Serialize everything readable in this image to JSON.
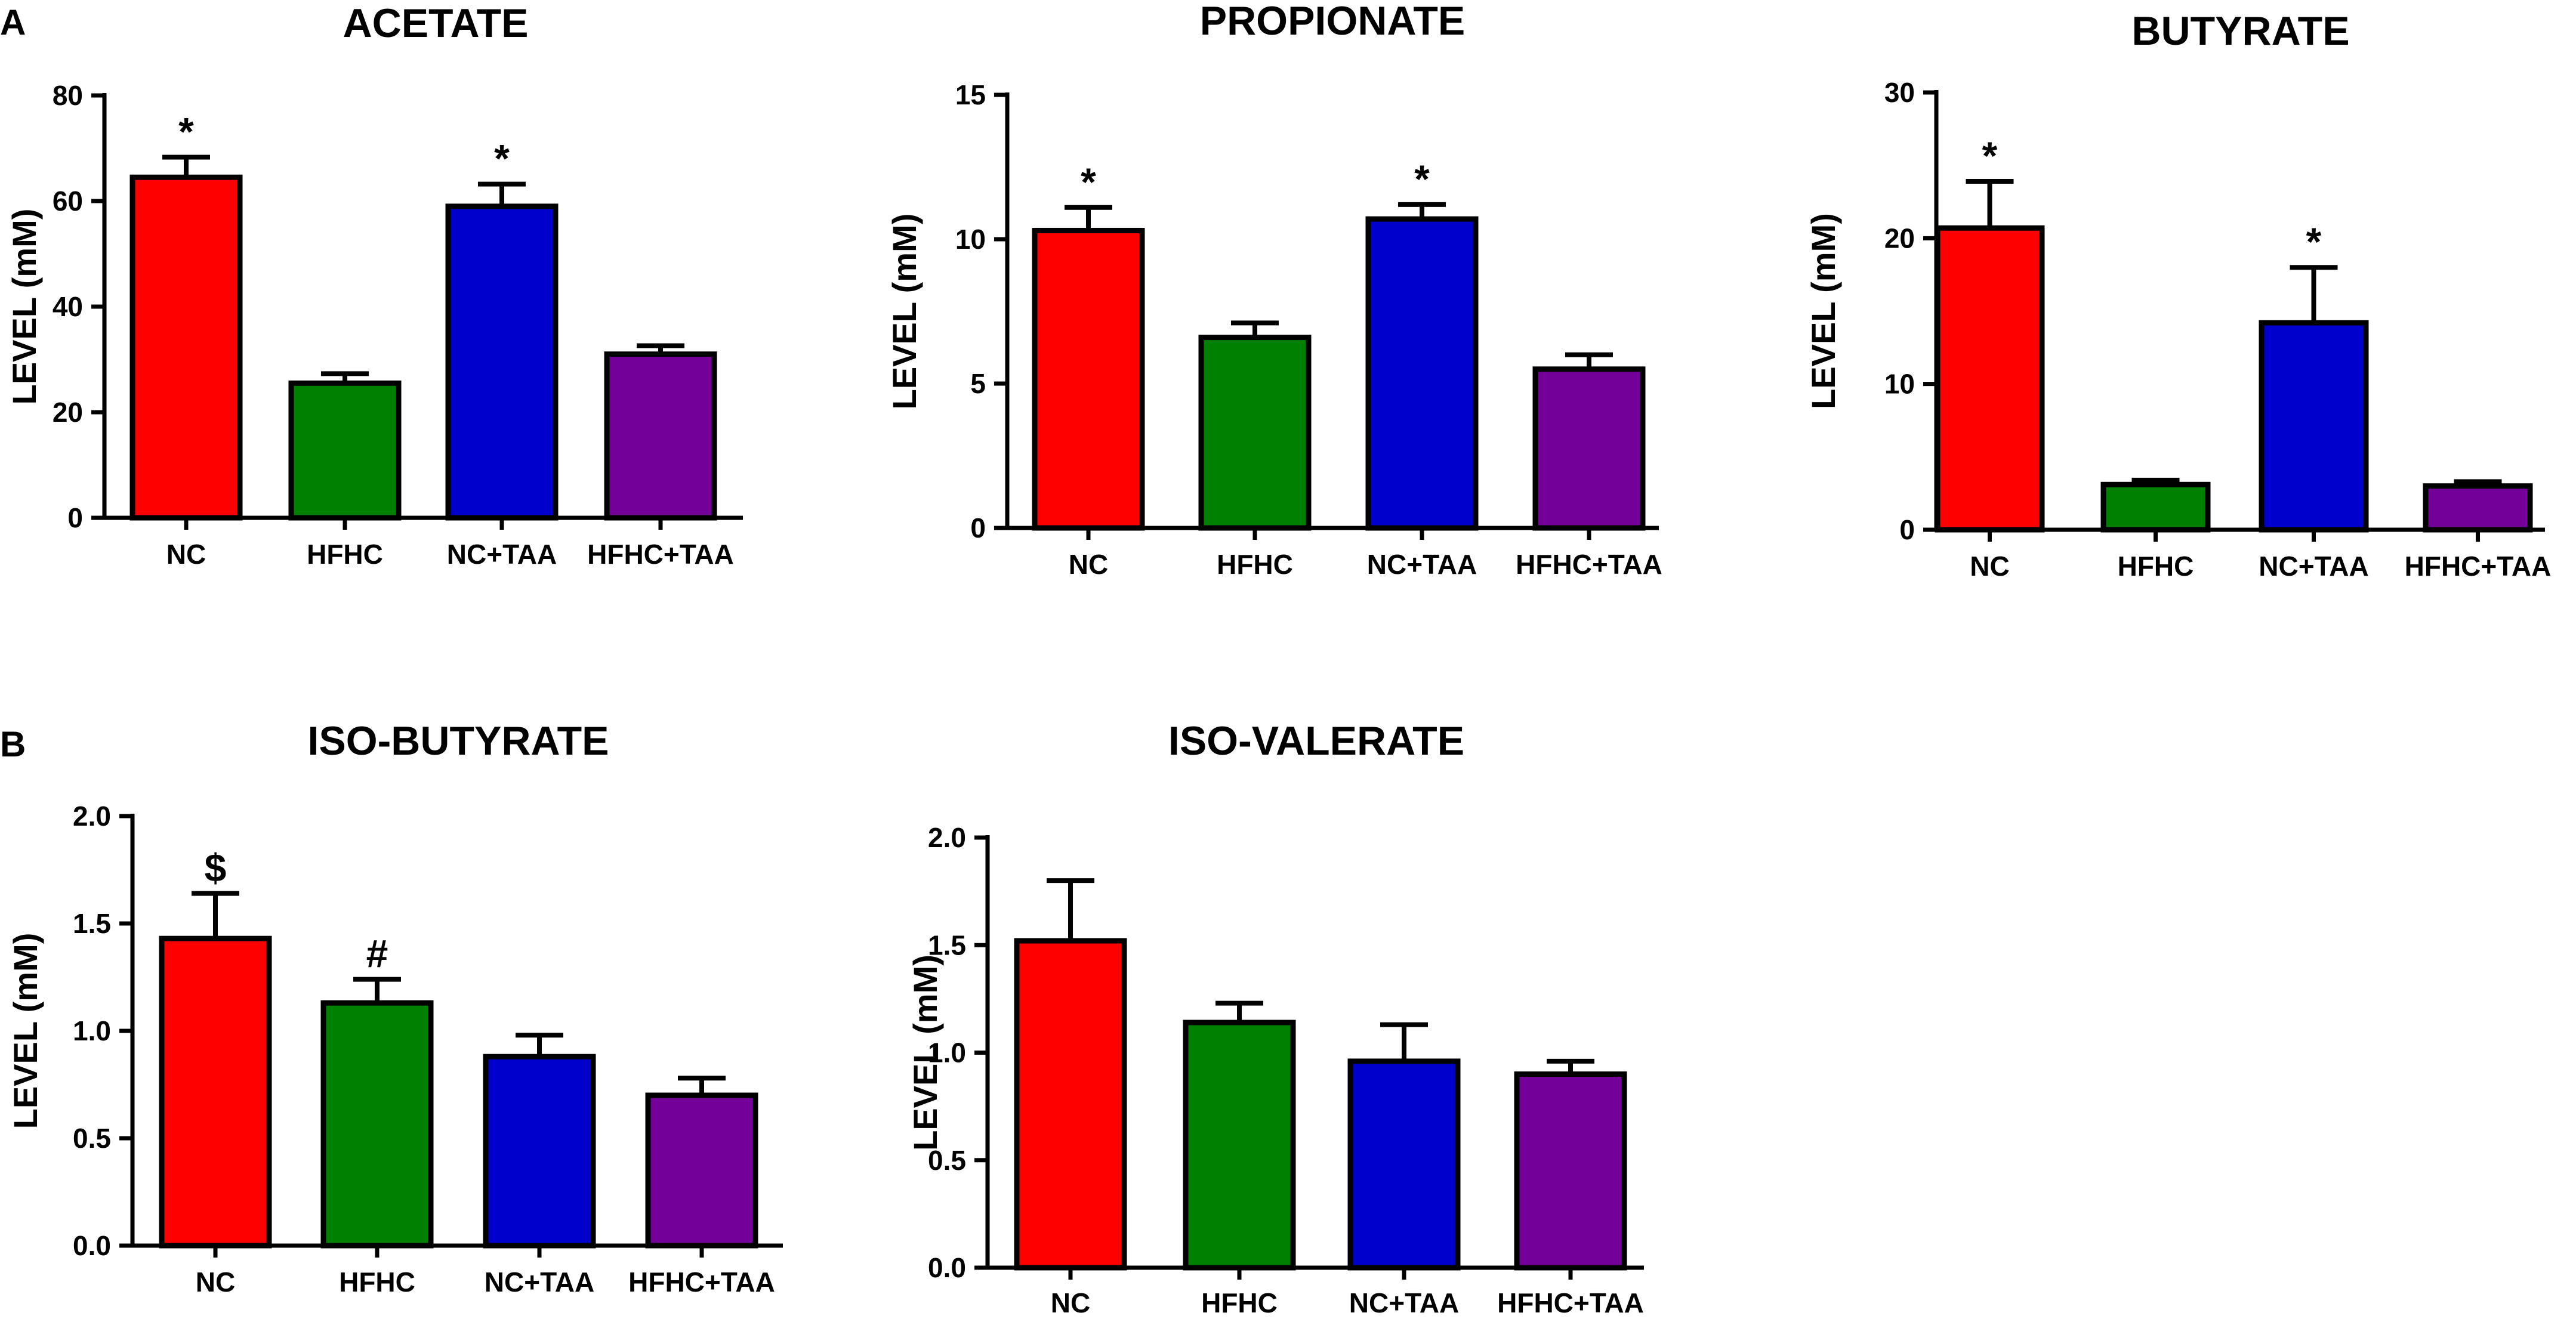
{
  "panel_labels": [
    "A",
    "B"
  ],
  "chart_data": [
    {
      "type": "bar",
      "panel": "A",
      "title": "ACETATE",
      "ylabel": "LEVEL (mM)",
      "ylim": [
        0,
        80
      ],
      "yticks": [
        0,
        20,
        40,
        60,
        80
      ],
      "tick_labels": [
        "0",
        "20",
        "40",
        "60",
        "80"
      ],
      "categories": [
        "NC",
        "HFHC",
        "NC+TAA",
        "HFHC+TAA"
      ],
      "values": [
        64.5,
        25.5,
        59,
        31
      ],
      "errors": [
        3.8,
        1.8,
        4.2,
        1.6
      ],
      "annotations": [
        "*",
        "",
        "*",
        ""
      ],
      "colors": [
        "#ff0000",
        "#008000",
        "#0000cc",
        "#730099"
      ]
    },
    {
      "type": "bar",
      "panel": "A",
      "title": "PROPIONATE",
      "ylabel": "LEVEL (mM)",
      "ylim": [
        0,
        15
      ],
      "yticks": [
        0,
        5,
        10,
        15
      ],
      "tick_labels": [
        "0",
        "5",
        "10",
        "15"
      ],
      "categories": [
        "NC",
        "HFHC",
        "NC+TAA",
        "HFHC+TAA"
      ],
      "values": [
        10.3,
        6.6,
        10.7,
        5.5
      ],
      "errors": [
        0.8,
        0.5,
        0.5,
        0.5
      ],
      "annotations": [
        "*",
        "",
        "*",
        ""
      ],
      "colors": [
        "#ff0000",
        "#008000",
        "#0000cc",
        "#730099"
      ]
    },
    {
      "type": "bar",
      "panel": "A",
      "title": "BUTYRATE",
      "ylabel": "LEVEL (mM)",
      "ylim": [
        0,
        30
      ],
      "yticks": [
        0,
        10,
        20,
        30
      ],
      "tick_labels": [
        "0",
        "10",
        "20",
        "30"
      ],
      "categories": [
        "NC",
        "HFHC",
        "NC+TAA",
        "HFHC+TAA"
      ],
      "values": [
        20.7,
        3.1,
        14.2,
        3.0
      ],
      "errors": [
        3.2,
        0.3,
        3.8,
        0.3
      ],
      "annotations": [
        "*",
        "",
        "*",
        ""
      ],
      "colors": [
        "#ff0000",
        "#008000",
        "#0000cc",
        "#730099"
      ]
    },
    {
      "type": "bar",
      "panel": "B",
      "title": "ISO-BUTYRATE",
      "ylabel": "LEVEL (mM)",
      "ylim": [
        0,
        2.0
      ],
      "yticks": [
        0,
        0.5,
        1.0,
        1.5,
        2.0
      ],
      "tick_labels": [
        "0.0",
        "0.5",
        "1.0",
        "1.5",
        "2.0"
      ],
      "categories": [
        "NC",
        "HFHC",
        "NC+TAA",
        "HFHC+TAA"
      ],
      "values": [
        1.43,
        1.13,
        0.88,
        0.7
      ],
      "errors": [
        0.21,
        0.11,
        0.1,
        0.08
      ],
      "annotations": [
        "$",
        "#",
        "",
        ""
      ],
      "colors": [
        "#ff0000",
        "#008000",
        "#0000cc",
        "#730099"
      ]
    },
    {
      "type": "bar",
      "panel": "B",
      "title": "ISO-VALERATE",
      "ylabel": "LEVEL (mM)",
      "ylim": [
        0,
        2.0
      ],
      "yticks": [
        0,
        0.5,
        1.0,
        1.5,
        2.0
      ],
      "tick_labels": [
        "0.0",
        "0.5",
        "1.0",
        "1.5",
        "2.0"
      ],
      "categories": [
        "NC",
        "HFHC",
        "NC+TAA",
        "HFHC+TAA"
      ],
      "values": [
        1.52,
        1.14,
        0.96,
        0.9
      ],
      "errors": [
        0.28,
        0.09,
        0.17,
        0.06
      ],
      "annotations": [
        "",
        "",
        "",
        ""
      ],
      "colors": [
        "#ff0000",
        "#008000",
        "#0000cc",
        "#730099"
      ]
    }
  ]
}
